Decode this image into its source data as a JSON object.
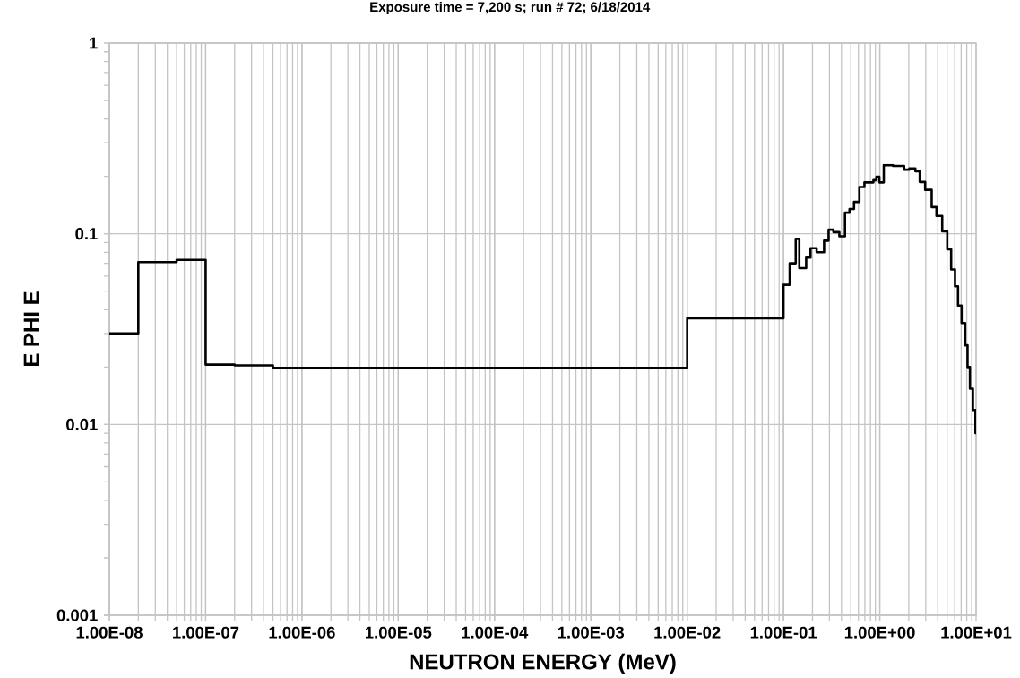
{
  "chart_data": {
    "type": "step",
    "title": "Exposure time = 7,200 s; run # 72; 6/18/2014",
    "xlabel": "NEUTRON ENERGY (MeV)",
    "ylabel": "E PHI E",
    "x": [
      1e-08,
      2e-08,
      5e-08,
      1e-07,
      2e-07,
      5e-07,
      0.01,
      0.1,
      0.116,
      0.134,
      0.146,
      0.172,
      0.191,
      0.221,
      0.264,
      0.294,
      0.33,
      0.38,
      0.435,
      0.485,
      0.54,
      0.614,
      0.693,
      0.859,
      0.923,
      0.99,
      1.1,
      1.37,
      1.79,
      2.03,
      2.34,
      2.6,
      2.96,
      3.46,
      3.88,
      4.45,
      5.02,
      5.51,
      6.04,
      6.49,
      7.07,
      7.7,
      8.15,
      8.63,
      9.27,
      9.85,
      10
    ],
    "values": [
      0.03,
      0.071,
      0.073,
      0.0206,
      0.0204,
      0.0198,
      0.036,
      0.054,
      0.07,
      0.094,
      0.066,
      0.075,
      0.084,
      0.08,
      0.092,
      0.105,
      0.102,
      0.097,
      0.129,
      0.135,
      0.147,
      0.176,
      0.186,
      0.191,
      0.199,
      0.186,
      0.229,
      0.227,
      0.217,
      0.22,
      0.213,
      0.187,
      0.17,
      0.138,
      0.124,
      0.103,
      0.083,
      0.065,
      0.053,
      0.042,
      0.034,
      0.026,
      0.02,
      0.0154,
      0.0119,
      0.009,
      0.009
    ],
    "color": "#000000",
    "xlim": [
      1e-08,
      10
    ],
    "ylim": [
      0.001,
      1
    ],
    "xticks": [
      {
        "value": 1e-08,
        "label": "1.00E-08"
      },
      {
        "value": 1e-07,
        "label": "1.00E-07"
      },
      {
        "value": 1e-06,
        "label": "1.00E-06"
      },
      {
        "value": 1e-05,
        "label": "1.00E-05"
      },
      {
        "value": 0.0001,
        "label": "1.00E-04"
      },
      {
        "value": 0.001,
        "label": "1.00E-03"
      },
      {
        "value": 0.01,
        "label": "1.00E-02"
      },
      {
        "value": 0.1,
        "label": "1.00E-01"
      },
      {
        "value": 1,
        "label": "1.00E+00"
      },
      {
        "value": 10,
        "label": "1.00E+01"
      }
    ],
    "yticks": [
      0.001,
      0.01,
      0.1,
      1
    ],
    "log": "xy",
    "grid": true,
    "marker": "none",
    "line_style": "solid"
  }
}
